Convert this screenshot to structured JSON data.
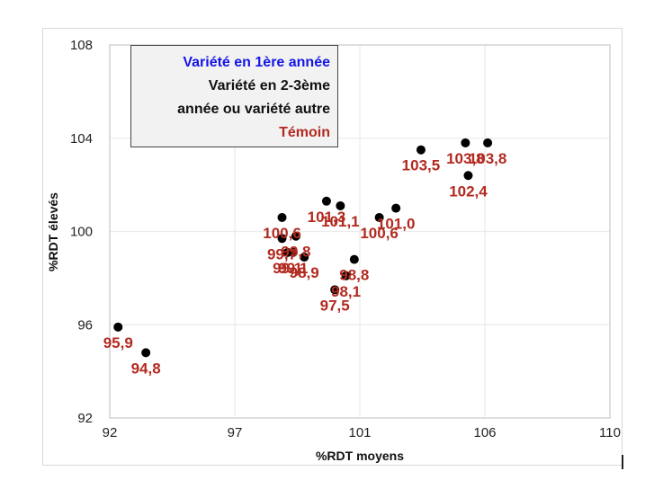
{
  "chart_data": {
    "type": "scatter",
    "title": "",
    "xlabel": "%RDT moyens",
    "ylabel": "%RDT élevés",
    "xlim": [
      92,
      110
    ],
    "ylim": [
      92,
      108
    ],
    "x_ticks": [
      "92",
      "97",
      "101",
      "106",
      "110"
    ],
    "x_tick_values": [
      92,
      96.5,
      101,
      105.5,
      110
    ],
    "y_ticks": [
      "92",
      "96",
      "100",
      "104",
      "108"
    ],
    "y_tick_values": [
      92,
      96,
      100,
      104,
      108
    ],
    "grid": true,
    "legend": {
      "position": "top-left inside",
      "entries": [
        {
          "text": "Variété en 1ère année",
          "color": "#1515e6"
        },
        {
          "text": "Variété en 2-3ème",
          "color": "#111111"
        },
        {
          "text": "année ou variété autre",
          "color": "#111111"
        },
        {
          "text": "Témoin",
          "color": "#b22a20"
        }
      ]
    },
    "marker_color": "#000000",
    "label_color": "#b22a20",
    "points": [
      {
        "x": 92.3,
        "y": 95.9,
        "label": "95,9"
      },
      {
        "x": 93.3,
        "y": 94.8,
        "label": "94,8"
      },
      {
        "x": 98.2,
        "y": 100.6,
        "label": "100,6"
      },
      {
        "x": 98.7,
        "y": 99.8,
        "label": "99,8"
      },
      {
        "x": 98.2,
        "y": 99.7,
        "label": "99,7"
      },
      {
        "x": 98.4,
        "y": 99.1,
        "label": "99,1"
      },
      {
        "x": 98.6,
        "y": 99.1,
        "label": "99,1"
      },
      {
        "x": 99.0,
        "y": 98.9,
        "label": "98,9"
      },
      {
        "x": 99.8,
        "y": 101.3,
        "label": "101,3"
      },
      {
        "x": 100.3,
        "y": 101.1,
        "label": "101,1"
      },
      {
        "x": 100.8,
        "y": 98.8,
        "label": "98,8"
      },
      {
        "x": 100.5,
        "y": 98.1,
        "label": "98,1"
      },
      {
        "x": 100.1,
        "y": 97.5,
        "label": "97,5"
      },
      {
        "x": 101.7,
        "y": 100.6,
        "label": "100,6"
      },
      {
        "x": 102.3,
        "y": 101.0,
        "label": "101,0"
      },
      {
        "x": 103.2,
        "y": 103.5,
        "label": "103,5"
      },
      {
        "x": 104.8,
        "y": 103.8,
        "label": "103,8"
      },
      {
        "x": 105.6,
        "y": 103.8,
        "label": "103,8"
      },
      {
        "x": 104.9,
        "y": 102.4,
        "label": "102,4"
      }
    ]
  }
}
